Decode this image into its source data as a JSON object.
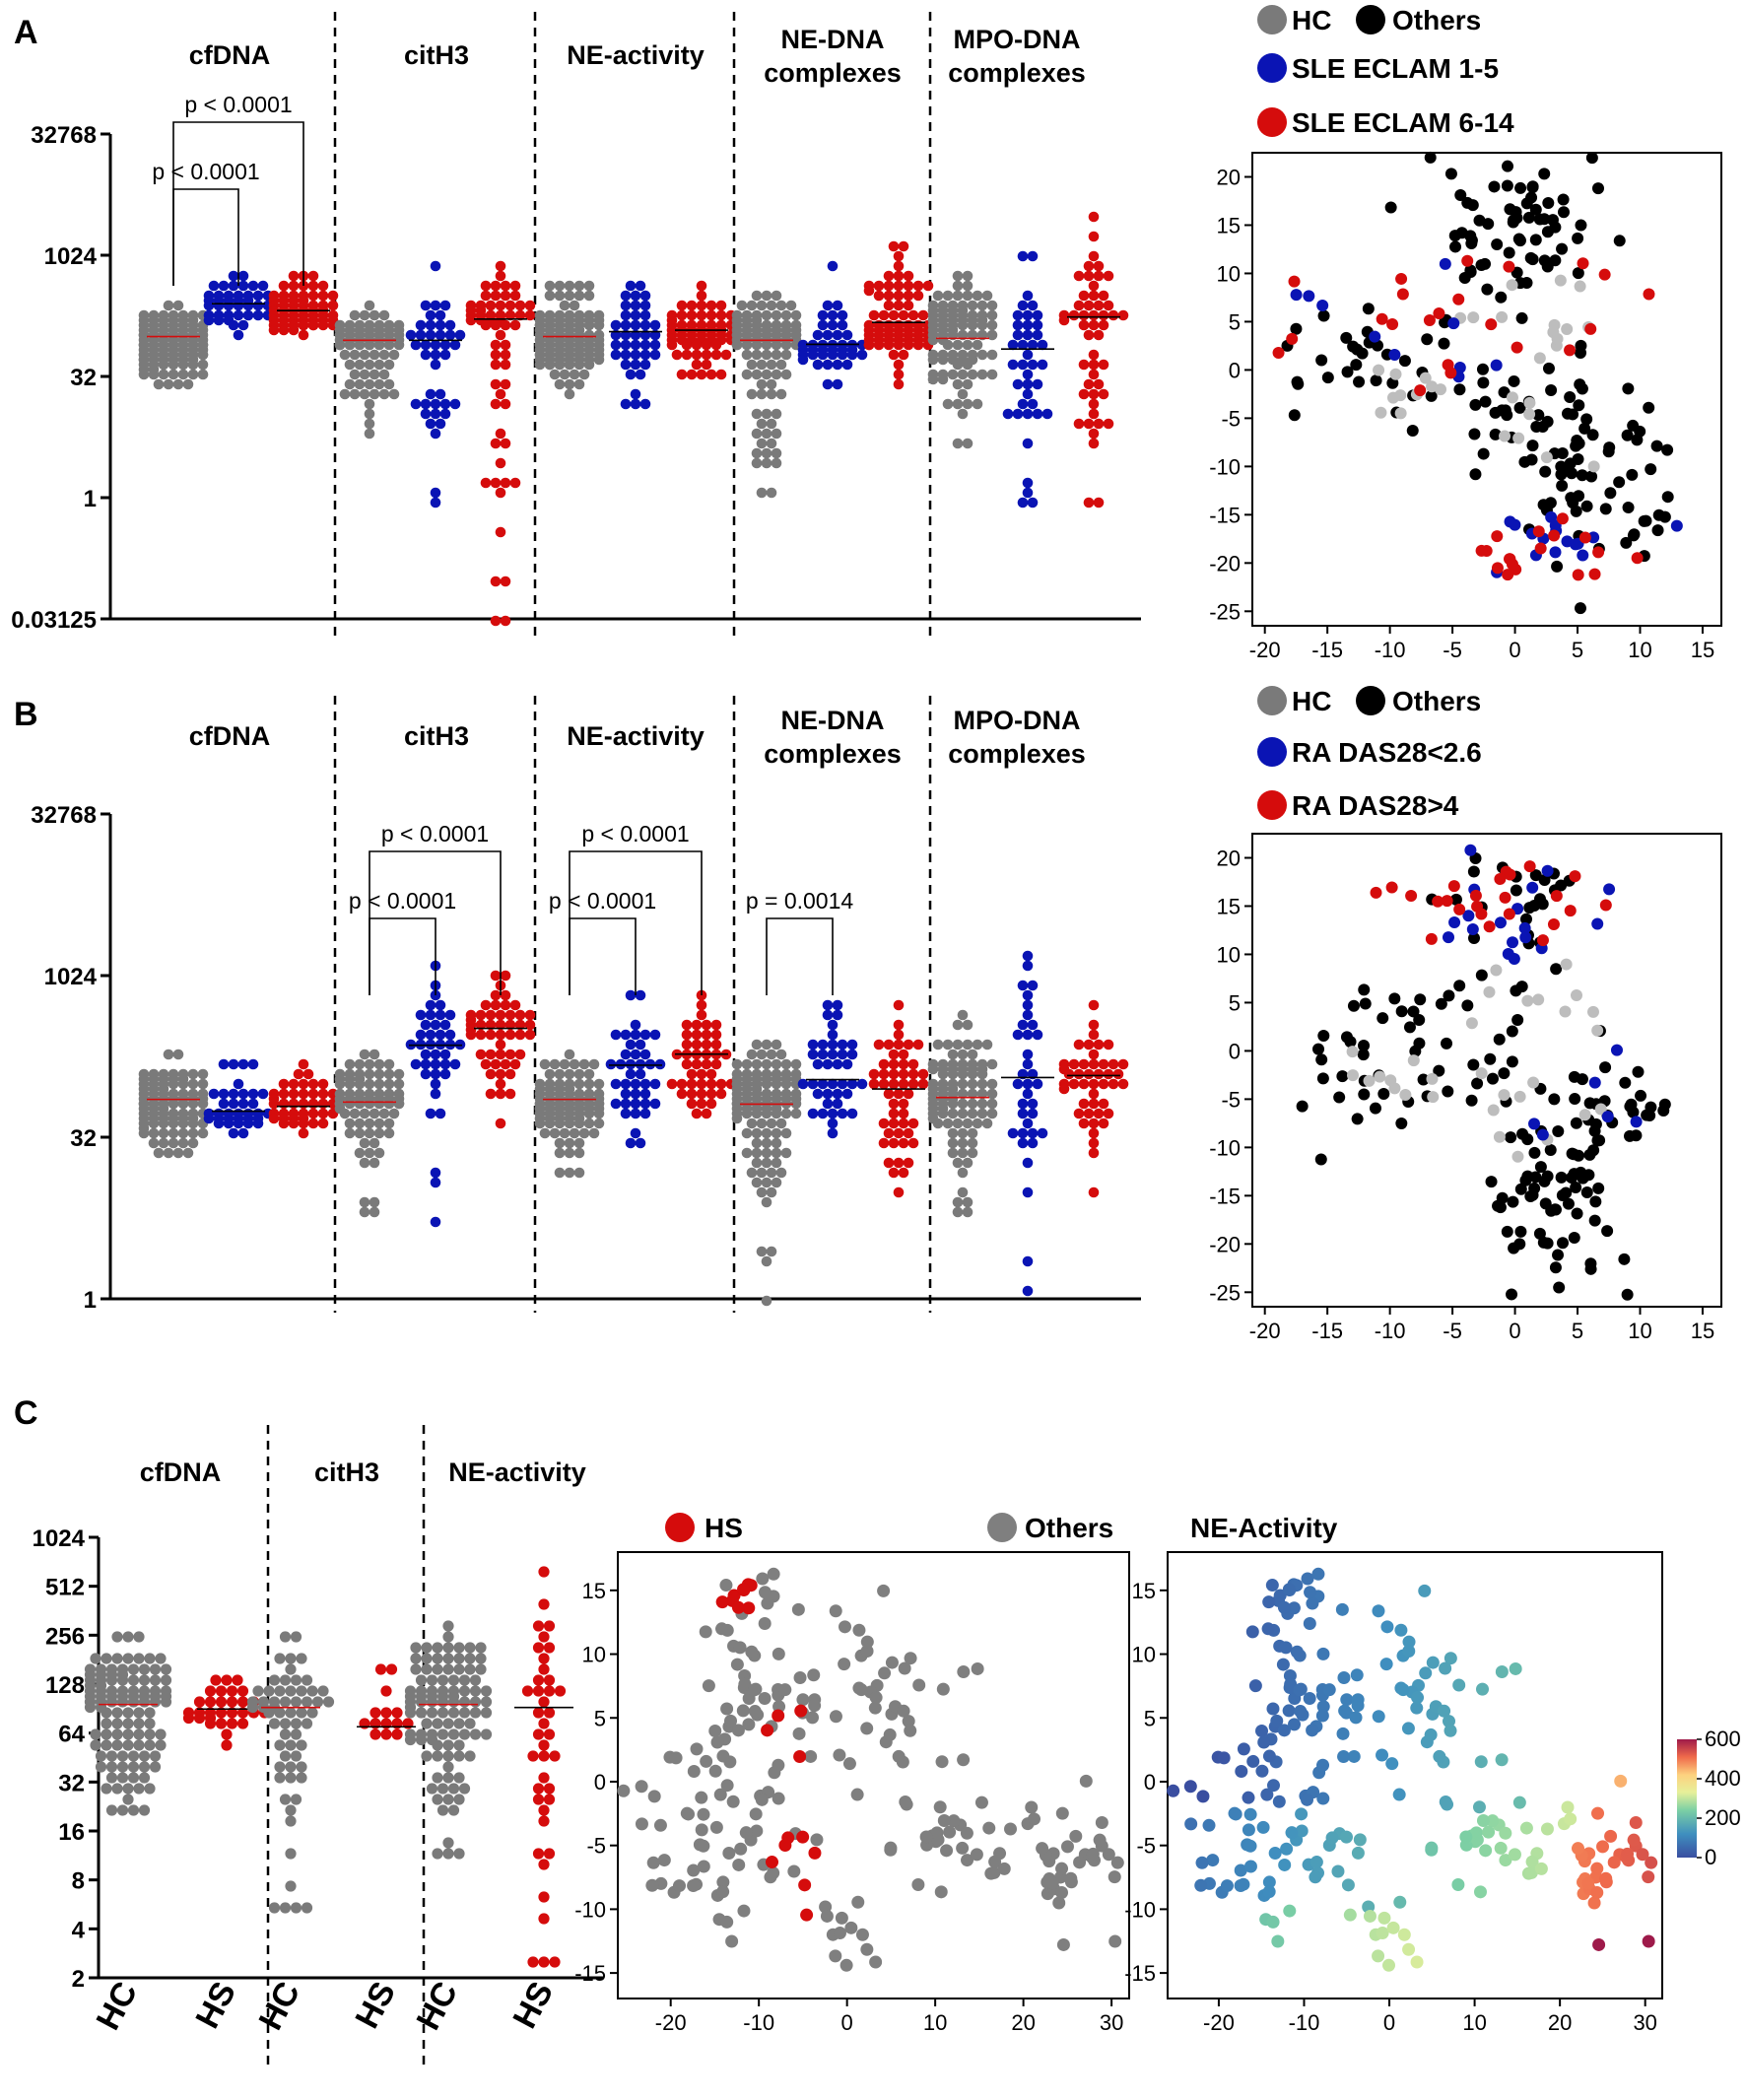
{
  "figure": {
    "panel_labels": [
      "A",
      "B",
      "C"
    ],
    "colors": {
      "hc": "#7a7a7a",
      "low": "#0a14b4",
      "high": "#d50c0c",
      "others": "#000000",
      "hc_tsne": "#bdbdbd",
      "hs_others": "#7f7f7f"
    }
  },
  "chart_data": [
    {
      "id": "A-dot",
      "type": "scatter",
      "subtype": "dot-plot-log2",
      "panel": "A",
      "groups": [
        {
          "label": "cfDNA",
          "series": [
            {
              "name": "HC",
              "median": 100,
              "min": 24,
              "max": 280,
              "n": 110
            },
            {
              "name": "SLE ECLAM 1-5",
              "median": 256,
              "min": 100,
              "max": 520,
              "n": 40
            },
            {
              "name": "SLE ECLAM 6-14",
              "median": 210,
              "min": 120,
              "max": 560,
              "n": 60
            }
          ]
        },
        {
          "label": "citH3",
          "series": [
            {
              "name": "HC",
              "median": 90,
              "min": 7,
              "max": 250,
              "n": 80
            },
            {
              "name": "SLE ECLAM 1-5",
              "median": 90,
              "min": 0.85,
              "max": 700,
              "n": 40
            },
            {
              "name": "SLE ECLAM 6-14",
              "median": 165,
              "min": 0.03,
              "max": 700,
              "n": 60
            }
          ]
        },
        {
          "label": "NE-activity",
          "series": [
            {
              "name": "HC",
              "median": 100,
              "min": 22,
              "max": 420,
              "n": 110
            },
            {
              "name": "SLE ECLAM 1-5",
              "median": 115,
              "min": 13,
              "max": 450,
              "n": 40
            },
            {
              "name": "SLE ECLAM 6-14",
              "median": 120,
              "min": 30,
              "max": 400,
              "n": 60
            }
          ]
        },
        {
          "label": "NE-DNA complexes",
          "series": [
            {
              "name": "HC",
              "median": 90,
              "min": 1.1,
              "max": 360,
              "n": 100
            },
            {
              "name": "SLE ECLAM 1-5",
              "median": 80,
              "min": 24,
              "max": 850,
              "n": 40
            },
            {
              "name": "SLE ECLAM 6-14",
              "median": 150,
              "min": 28,
              "max": 1400,
              "n": 70
            }
          ]
        },
        {
          "label": "MPO-DNA complexes",
          "series": [
            {
              "name": "HC",
              "median": 95,
              "min": 5,
              "max": 580,
              "n": 90
            },
            {
              "name": "SLE ECLAM 1-5",
              "median": 70,
              "min": 1,
              "max": 900,
              "n": 40
            },
            {
              "name": "SLE ECLAM 6-14",
              "median": 175,
              "min": 1,
              "max": 2900,
              "n": 50
            }
          ]
        }
      ],
      "yticks": [
        "32768",
        "1024",
        "32",
        "1",
        "0.03125"
      ],
      "ylim": [
        0.03125,
        32768
      ],
      "comparisons": [
        {
          "group": "cfDNA",
          "from": 0,
          "to": 1,
          "label": "p < 0.0001",
          "level": 1
        },
        {
          "group": "cfDNA",
          "from": 0,
          "to": 2,
          "label": "p < 0.0001",
          "level": 2
        }
      ]
    },
    {
      "id": "B-dot",
      "type": "scatter",
      "subtype": "dot-plot-log2",
      "panel": "B",
      "groups": [
        {
          "label": "cfDNA",
          "series": [
            {
              "name": "HC",
              "median": 72,
              "min": 22,
              "max": 180,
              "n": 90
            },
            {
              "name": "RA DAS28<2.6",
              "median": 56,
              "min": 36,
              "max": 150,
              "n": 35
            },
            {
              "name": "RA DAS28>4",
              "median": 62,
              "min": 36,
              "max": 150,
              "n": 40
            }
          ]
        },
        {
          "label": "citH3",
          "series": [
            {
              "name": "HC",
              "median": 68,
              "min": 6,
              "max": 200,
              "n": 80
            },
            {
              "name": "RA DAS28<2.6",
              "median": 230,
              "min": 5,
              "max": 1300,
              "n": 40
            },
            {
              "name": "RA DAS28>4",
              "median": 330,
              "min": 40,
              "max": 1100,
              "n": 50
            }
          ]
        },
        {
          "label": "NE-activity",
          "series": [
            {
              "name": "HC",
              "median": 72,
              "min": 15,
              "max": 200,
              "n": 100
            },
            {
              "name": "RA DAS28<2.6",
              "median": 150,
              "min": 30,
              "max": 650,
              "n": 40
            },
            {
              "name": "RA DAS28>4",
              "median": 190,
              "min": 48,
              "max": 650,
              "n": 45
            }
          ]
        },
        {
          "label": "NE-DNA complexes",
          "series": [
            {
              "name": "HC",
              "median": 65,
              "min": 1,
              "max": 250,
              "n": 110
            },
            {
              "name": "RA DAS28<2.6",
              "median": 110,
              "min": 36,
              "max": 600,
              "n": 40
            },
            {
              "name": "RA DAS28>4",
              "median": 90,
              "min": 9,
              "max": 520,
              "n": 50
            }
          ]
        },
        {
          "label": "MPO-DNA complexes",
          "series": [
            {
              "name": "HC",
              "median": 75,
              "min": 6,
              "max": 450,
              "n": 90
            },
            {
              "name": "RA DAS28<2.6",
              "median": 115,
              "min": 1.2,
              "max": 1500,
              "n": 35
            },
            {
              "name": "RA DAS28>4",
              "median": 120,
              "min": 10,
              "max": 500,
              "n": 45
            }
          ]
        }
      ],
      "yticks": [
        "32768",
        "1024",
        "32",
        "1"
      ],
      "ylim": [
        1,
        32768
      ],
      "comparisons": [
        {
          "group": "citH3",
          "from": 0,
          "to": 1,
          "label": "p < 0.0001",
          "level": 1
        },
        {
          "group": "citH3",
          "from": 0,
          "to": 2,
          "label": "p < 0.0001",
          "level": 2
        },
        {
          "group": "NE-activity",
          "from": 0,
          "to": 1,
          "label": "p < 0.0001",
          "level": 1
        },
        {
          "group": "NE-activity",
          "from": 0,
          "to": 2,
          "label": "p < 0.0001",
          "level": 2
        },
        {
          "group": "NE-DNA complexes",
          "from": 0,
          "to": 1,
          "label": "p = 0.0014",
          "level": 1
        }
      ]
    },
    {
      "id": "C-dot",
      "type": "scatter",
      "subtype": "dot-plot-log2",
      "panel": "C",
      "groups": [
        {
          "label": "cfDNA",
          "series": [
            {
              "name": "HC",
              "median": 96,
              "min": 20,
              "max": 270,
              "n": 110
            },
            {
              "name": "HS",
              "median": 90,
              "min": 56,
              "max": 140,
              "n": 30
            }
          ]
        },
        {
          "label": "citH3",
          "series": [
            {
              "name": "HC",
              "median": 92,
              "min": 5,
              "max": 250,
              "n": 60
            },
            {
              "name": "HS",
              "median": 70,
              "min": 64,
              "max": 160,
              "n": 14
            }
          ]
        },
        {
          "label": "NE-activity",
          "series": [
            {
              "name": "HC",
              "median": 96,
              "min": 12,
              "max": 300,
              "n": 100
            },
            {
              "name": "HS",
              "median": 92,
              "min": 2.5,
              "max": 600,
              "n": 40
            }
          ]
        }
      ],
      "xcategories": [
        "HC",
        "HS",
        "HC",
        "HS",
        "HC",
        "HS"
      ],
      "yticks": [
        "1024",
        "512",
        "256",
        "128",
        "64",
        "32",
        "16",
        "8",
        "4",
        "2"
      ],
      "ylim": [
        2,
        1024
      ]
    },
    {
      "id": "A-tsne",
      "type": "scatter",
      "subtype": "t-SNE",
      "legend": [
        "HC",
        "Others",
        "SLE ECLAM 1-5",
        "SLE ECLAM 6-14"
      ],
      "xticks": [
        "-20",
        "-15",
        "-10",
        "-5",
        "0",
        "5",
        "10",
        "15"
      ],
      "yticks": [
        "20",
        "15",
        "10",
        "5",
        "0",
        "-5",
        "-10",
        "-15",
        "-20",
        "-25"
      ],
      "xlim": [
        -21,
        16.5
      ],
      "ylim": [
        -26.5,
        22.5
      ]
    },
    {
      "id": "B-tsne",
      "type": "scatter",
      "subtype": "t-SNE",
      "legend": [
        "HC",
        "Others",
        "RA DAS28<2.6",
        "RA DAS28>4"
      ],
      "xticks": [
        "-20",
        "-15",
        "-10",
        "-5",
        "0",
        "5",
        "10",
        "15"
      ],
      "yticks": [
        "20",
        "15",
        "10",
        "5",
        "0",
        "-5",
        "-10",
        "-15",
        "-20",
        "-25"
      ],
      "xlim": [
        -21,
        16.5
      ],
      "ylim": [
        -26.5,
        22.5
      ]
    },
    {
      "id": "C-tsne-hs",
      "type": "scatter",
      "subtype": "t-SNE",
      "legend": [
        "HS",
        "Others"
      ],
      "xticks": [
        "-20",
        "-10",
        "0",
        "10",
        "20",
        "30"
      ],
      "yticks": [
        "15",
        "10",
        "5",
        "0",
        "-5",
        "-10",
        "-15"
      ],
      "xlim": [
        -26,
        32
      ],
      "ylim": [
        -17,
        18
      ]
    },
    {
      "id": "C-tsne-ne",
      "type": "scatter",
      "subtype": "t-SNE",
      "title": "NE-Activity",
      "colorbar_ticks": [
        "600",
        "400",
        "200",
        "0"
      ],
      "colorbar_range": [
        0,
        600
      ],
      "xticks": [
        "-20",
        "-10",
        "0",
        "10",
        "20",
        "30"
      ],
      "yticks": [
        "15",
        "10",
        "5",
        "0",
        "-5",
        "-10",
        "-15"
      ],
      "xlim": [
        -26,
        32
      ],
      "ylim": [
        -17,
        18
      ]
    }
  ]
}
